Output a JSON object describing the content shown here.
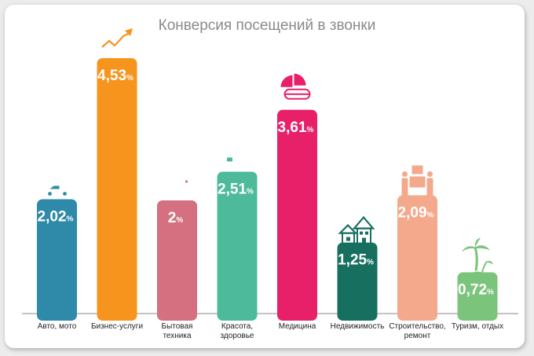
{
  "chart_data": {
    "type": "bar",
    "title": "Конверсия посещений в звонки",
    "categories": [
      [
        "Авто, мото"
      ],
      [
        "Бизнес-услуги"
      ],
      [
        "Бытовая",
        "техника"
      ],
      [
        "Красота,",
        "здоровье"
      ],
      [
        "Медицина"
      ],
      [
        "Недвижимость"
      ],
      [
        "Строительство,",
        "ремонт"
      ],
      [
        "Туризм, отдых"
      ]
    ],
    "values": [
      2.02,
      4.53,
      2,
      2.51,
      3.61,
      1.25,
      2.09,
      0.72
    ],
    "value_labels": [
      "2,02",
      "4,53",
      "2",
      "2,51",
      "3,61",
      "1,25",
      "2,09",
      "0,72"
    ],
    "unit": "%",
    "colors": [
      "#2e8aa8",
      "#f7941d",
      "#d4707f",
      "#4dbb9b",
      "#e8206a",
      "#17705f",
      "#f4a98d",
      "#7bc47b"
    ],
    "icons": [
      "car-icon",
      "growth-chart-icon",
      "coffee-machine-icon",
      "cosmetics-icon",
      "pills-icon",
      "houses-icon",
      "movers-icon",
      "palm-island-icon"
    ],
    "ylim": [
      0,
      4.53
    ],
    "grid": false,
    "legend": "none"
  }
}
